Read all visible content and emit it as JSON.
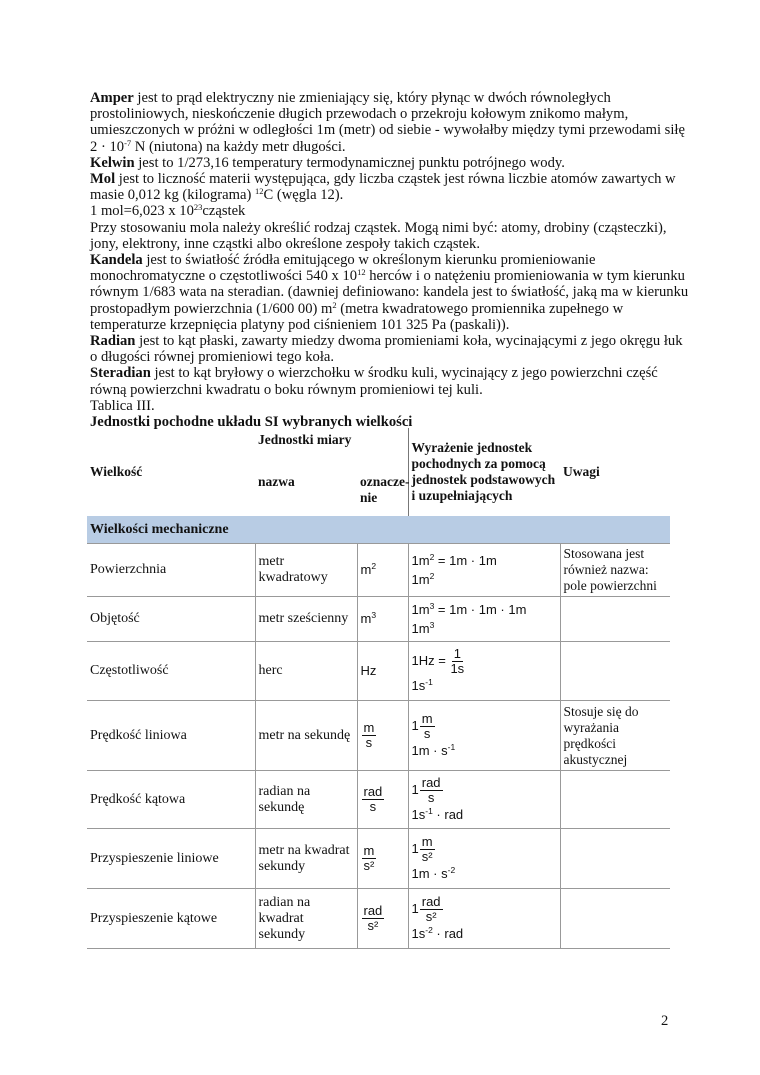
{
  "intro": {
    "lines": [
      [
        {
          "t": "Amper",
          "b": true
        },
        {
          "t": " jest to prąd elektryczny nie zmieniający się, który płynąc w dwóch równoległych"
        }
      ],
      [
        {
          "t": "prostoliniowych, nieskończenie długich przewodach o przekroju kołowym znikomo małym,"
        }
      ],
      [
        {
          "t": "umieszczonych w próżni w odległości 1m (metr) od siebie - wywołałby między tymi przewodami siłę"
        }
      ],
      [
        {
          "t": "2 · 10"
        },
        {
          "t": "-7",
          "sup": true
        },
        {
          "t": " N (niutona) na każdy metr długości."
        }
      ],
      [
        {
          "t": "Kelwin",
          "b": true
        },
        {
          "t": " jest to 1/273,16 temperatury termodynamicznej punktu potrójnego wody."
        }
      ],
      [
        {
          "t": "Mol",
          "b": true
        },
        {
          "t": " jest to liczność materii występująca, gdy liczba cząstek jest równa liczbie atomów zawartych w"
        }
      ],
      [
        {
          "t": "masie 0,012 kg (kilograma) "
        },
        {
          "t": "12",
          "sup": true
        },
        {
          "t": "C (węgla 12)."
        }
      ],
      [
        {
          "t": "1 mol=6,023 x 10"
        },
        {
          "t": "23",
          "sup": true
        },
        {
          "t": "cząstek"
        }
      ],
      [
        {
          "t": "Przy stosowaniu mola należy określić rodzaj cząstek. Mogą nimi być: atomy, drobiny (cząsteczki),"
        }
      ],
      [
        {
          "t": "jony, elektrony, inne cząstki albo określone zespoły takich cząstek."
        }
      ],
      [
        {
          "t": "Kandela",
          "b": true
        },
        {
          "t": " jest to światłość źródła emitującego w określonym kierunku promieniowanie"
        }
      ],
      [
        {
          "t": "monochromatyczne o częstotliwości 540 x 10"
        },
        {
          "t": "12",
          "sup": true
        },
        {
          "t": " herców i o natężeniu promieniowania w tym kierunku"
        }
      ],
      [
        {
          "t": "równym 1/683 wata na steradian. (dawniej definiowano: kandela jest to światłość, jaką ma w kierunku"
        }
      ],
      [
        {
          "t": "prostopadłym powierzchnia (1/600 00) m"
        },
        {
          "t": "2",
          "sup": true
        },
        {
          "t": " (metra kwadratowego promiennika zupełnego w"
        }
      ],
      [
        {
          "t": "temperaturze krzepnięcia platyny pod ciśnieniem 101 325 Pa (paskali))."
        }
      ],
      [
        {
          "t": "Radian",
          "b": true
        },
        {
          "t": " jest to kąt płaski, zawarty miedzy dwoma promieniami koła, wycinającymi z jego okręgu łuk"
        }
      ],
      [
        {
          "t": "o długości równej promieniowi tego koła."
        }
      ],
      [
        {
          "t": "Steradian",
          "b": true
        },
        {
          "t": " jest to kąt bryłowy o wierzchołku w środku kuli, wycinający z jego powierzchni część"
        }
      ],
      [
        {
          "t": "równą powierzchni kwadratu o boku równym promieniowi tej kuli."
        }
      ],
      [
        {
          "t": "Tablica III."
        }
      ],
      [
        {
          "t": "Jednostki pochodne układu SI wybranych wielkości",
          "b": true
        }
      ]
    ]
  },
  "table": {
    "header": {
      "quantity": "Wielkość",
      "units_group": "Jednostki miary",
      "name": "nazwa",
      "symbol": "oznacze-nie",
      "expression": "Wyrażenie jednostek pochodnych za pomocą jednostek podstawowych i uzupełniających",
      "notes": "Uwagi"
    },
    "section": "Wielkości mechaniczne",
    "section_color": "#b8cce4",
    "rows": [
      {
        "quantity": "Powierzchnia",
        "name": "metr kwadratowy",
        "symbol": [
          {
            "t": "m"
          },
          {
            "sup": "2"
          }
        ],
        "expr": [
          [
            {
              "t": "1m"
            },
            {
              "sup": "2"
            },
            {
              "t": " = 1m · 1m"
            }
          ],
          [
            {
              "t": "1m"
            },
            {
              "sup": "2"
            }
          ]
        ],
        "notes": "Stosowana jest również nazwa: pole powierzchni"
      },
      {
        "quantity": "Objętość",
        "name": "metr sześcienny",
        "symbol": [
          {
            "t": "m"
          },
          {
            "sup": "3"
          }
        ],
        "expr": [
          [
            {
              "t": "1m"
            },
            {
              "sup": "3"
            },
            {
              "t": " = 1m · 1m · 1m"
            }
          ],
          [
            {
              "t": "1m"
            },
            {
              "sup": "3"
            }
          ]
        ],
        "notes": ""
      },
      {
        "quantity": "Częstotliwość",
        "name": "herc",
        "symbol": [
          {
            "t": "Hz"
          }
        ],
        "expr": [
          [
            {
              "t": "1Hz = "
            },
            {
              "frac": [
                "1",
                "1s"
              ]
            }
          ],
          [
            {
              "t": "1s"
            },
            {
              "sup": "-1"
            }
          ]
        ],
        "notes": ""
      },
      {
        "quantity": "Prędkość liniowa",
        "name": "metr na sekundę",
        "symbol": [
          {
            "frac": [
              "m",
              "s"
            ]
          }
        ],
        "expr": [
          [
            {
              "t": "1"
            },
            {
              "frac": [
                "m",
                "s"
              ]
            }
          ],
          [
            {
              "t": "1m · s"
            },
            {
              "sup": "-1"
            }
          ]
        ],
        "notes": "Stosuje się do wyrażania prędkości akustycznej"
      },
      {
        "quantity": "Prędkość kątowa",
        "name": "radian na sekundę",
        "symbol": [
          {
            "frac": [
              "rad",
              "s"
            ]
          }
        ],
        "expr": [
          [
            {
              "t": "1"
            },
            {
              "frac": [
                "rad",
                "s"
              ]
            }
          ],
          [
            {
              "t": "1s"
            },
            {
              "sup": "-1"
            },
            {
              "t": " · rad"
            }
          ]
        ],
        "notes": ""
      },
      {
        "quantity": "Przyspieszenie liniowe",
        "name": "metr na kwadrat sekundy",
        "symbol": [
          {
            "frac": [
              "m",
              "s²"
            ]
          }
        ],
        "expr": [
          [
            {
              "t": "1"
            },
            {
              "frac": [
                "m",
                "s²"
              ]
            }
          ],
          [
            {
              "t": "1m · s"
            },
            {
              "sup": "-2"
            }
          ]
        ],
        "notes": ""
      },
      {
        "quantity": "Przyspieszenie kątowe",
        "name": "radian na kwadrat sekundy",
        "symbol": [
          {
            "frac": [
              "rad",
              "s²"
            ]
          }
        ],
        "expr": [
          [
            {
              "t": "1"
            },
            {
              "frac": [
                "rad",
                "s²"
              ]
            }
          ],
          [
            {
              "t": "1s"
            },
            {
              "sup": "-2"
            },
            {
              "t": " · rad"
            }
          ]
        ],
        "notes": ""
      }
    ]
  },
  "page_number": "2"
}
